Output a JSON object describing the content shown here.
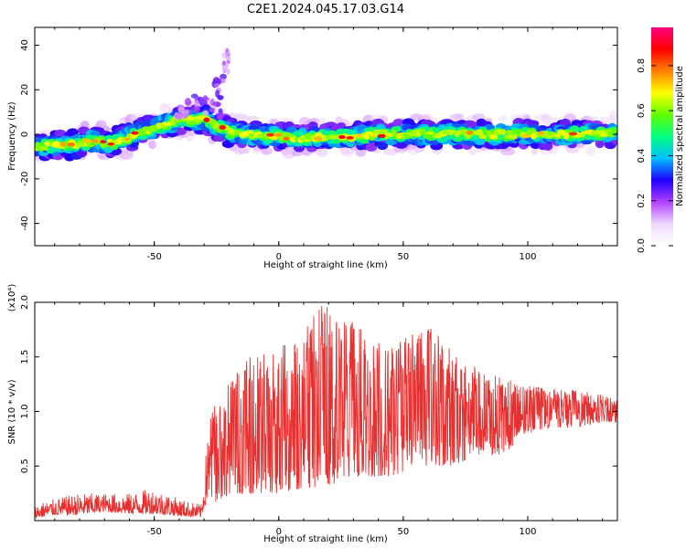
{
  "title": "C2E1.2024.045.17.03.G14",
  "chart_data": [
    {
      "type": "heatmap",
      "xlabel": "Height of straight line (km)",
      "ylabel": "Frequency (Hz)",
      "xlim": [
        -98,
        136
      ],
      "ylim": [
        -50,
        48
      ],
      "xticks": [
        -50,
        0,
        50,
        100
      ],
      "yticks": [
        -40,
        -20,
        0,
        20,
        40
      ],
      "trace_center": [
        {
          "x": -96,
          "y": -5
        },
        {
          "x": -85,
          "y": -5
        },
        {
          "x": -75,
          "y": -3
        },
        {
          "x": -68,
          "y": -4
        },
        {
          "x": -60,
          "y": -1
        },
        {
          "x": -50,
          "y": 3
        },
        {
          "x": -40,
          "y": 6
        },
        {
          "x": -30,
          "y": 7
        },
        {
          "x": -20,
          "y": 1
        },
        {
          "x": -10,
          "y": 0
        },
        {
          "x": 0,
          "y": -1
        },
        {
          "x": 10,
          "y": -2
        },
        {
          "x": 20,
          "y": -1
        },
        {
          "x": 30,
          "y": -1
        },
        {
          "x": 40,
          "y": 0
        },
        {
          "x": 60,
          "y": 0
        },
        {
          "x": 80,
          "y": 0
        },
        {
          "x": 100,
          "y": 0
        },
        {
          "x": 120,
          "y": 0
        },
        {
          "x": 136,
          "y": 1
        }
      ],
      "colorbar": {
        "label": "Normalized spectral amplitude",
        "range": [
          0,
          0.97
        ],
        "ticks": [
          0.0,
          0.2,
          0.4,
          0.6,
          0.8
        ],
        "tick_labels": [
          "0.0",
          "0.2",
          "0.4",
          "0.6",
          "0.8"
        ],
        "colormap": [
          "#ffffff",
          "#f0d8ff",
          "#b040ff",
          "#2000ff",
          "#00c0ff",
          "#00ff80",
          "#60ff00",
          "#ffff00",
          "#ff8000",
          "#ff0000",
          "#ff0080"
        ]
      },
      "grid": false
    },
    {
      "type": "line",
      "xlabel": "Height of straight line (km)",
      "ylabel": "SNR (10 * v/v)",
      "y_multiplier": "(x10⁴)",
      "xlim": [
        -98,
        136
      ],
      "ylim": [
        0,
        2.0
      ],
      "xticks": [
        -50,
        0,
        50,
        100
      ],
      "yticks": [
        0.5,
        1.0,
        1.5,
        2.0
      ],
      "ytick_labels": [
        "0.5",
        "1.0",
        "1.5",
        "2.0"
      ],
      "color": "#e83030",
      "envelope": {
        "x": [
          -98,
          -90,
          -80,
          -70,
          -60,
          -50,
          -40,
          -31,
          -28,
          -25,
          -20,
          -10,
          0,
          10,
          18,
          25,
          35,
          45,
          55,
          60,
          70,
          80,
          90,
          100,
          110,
          120,
          130,
          136
        ],
        "low": [
          0.02,
          0.05,
          0.05,
          0.08,
          0.06,
          0.06,
          0.04,
          0.03,
          0.25,
          0.15,
          0.25,
          0.25,
          0.25,
          0.3,
          0.3,
          0.35,
          0.4,
          0.4,
          0.5,
          0.5,
          0.5,
          0.6,
          0.6,
          0.8,
          0.85,
          0.85,
          0.9,
          0.9
        ],
        "high": [
          0.15,
          0.2,
          0.25,
          0.25,
          0.25,
          0.3,
          0.2,
          0.15,
          0.95,
          1.15,
          1.3,
          1.55,
          1.6,
          1.75,
          2.0,
          1.9,
          1.75,
          1.6,
          1.75,
          1.8,
          1.55,
          1.4,
          1.3,
          1.25,
          1.2,
          1.2,
          1.15,
          1.1
        ]
      },
      "grid": false
    }
  ]
}
